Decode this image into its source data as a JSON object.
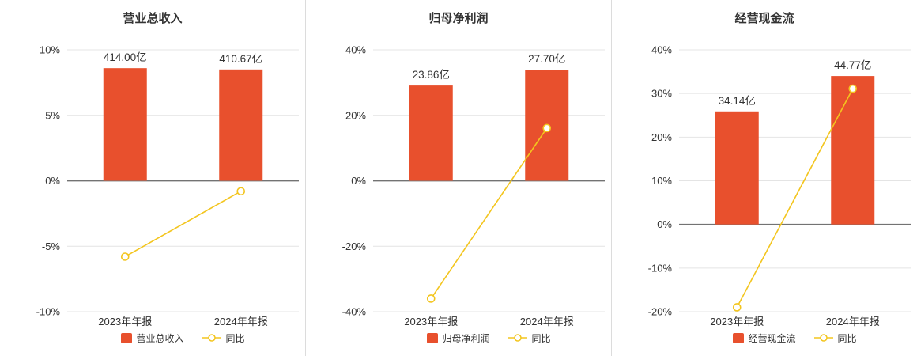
{
  "colors": {
    "bar": "#e8502d",
    "line": "#f3c51e",
    "grid_line": "#e4e4e4",
    "zero_line": "#737373",
    "axis_text": "#333333",
    "label_text": "#333333",
    "divider": "#dcdcdc",
    "background": "#ffffff"
  },
  "chart_data": [
    {
      "type": "bar+line",
      "title": "营业总收入",
      "categories": [
        "2023年年报",
        "2024年年报"
      ],
      "bar_series": {
        "name": "营业总收入",
        "unit": "亿",
        "values": [
          414.0,
          410.67
        ],
        "value_labels": [
          "414.00亿",
          "410.67亿"
        ],
        "bar_top_on_pct_axis": [
          8.6,
          8.5
        ]
      },
      "line_series": {
        "name": "同比",
        "unit": "%",
        "values": [
          -5.8,
          -0.8
        ]
      },
      "y_ticks": [
        10,
        5,
        0,
        -5,
        -10
      ],
      "ylim": [
        -10,
        10
      ],
      "tick_suffix": "%",
      "grid": true,
      "legend_position": "bottom"
    },
    {
      "type": "bar+line",
      "title": "归母净利润",
      "categories": [
        "2023年年报",
        "2024年年报"
      ],
      "bar_series": {
        "name": "归母净利润",
        "unit": "亿",
        "values": [
          23.86,
          27.7
        ],
        "value_labels": [
          "23.86亿",
          "27.70亿"
        ],
        "bar_top_on_pct_axis": [
          29.1,
          33.9
        ]
      },
      "line_series": {
        "name": "同比",
        "unit": "%",
        "values": [
          -36.0,
          16.1
        ]
      },
      "y_ticks": [
        40,
        20,
        0,
        -20,
        -40
      ],
      "ylim": [
        -40,
        40
      ],
      "tick_suffix": "%",
      "grid": true,
      "legend_position": "bottom"
    },
    {
      "type": "bar+line",
      "title": "经营现金流",
      "categories": [
        "2023年年报",
        "2024年年报"
      ],
      "bar_series": {
        "name": "经营现金流",
        "unit": "亿",
        "values": [
          34.14,
          44.77
        ],
        "value_labels": [
          "34.14亿",
          "44.77亿"
        ],
        "bar_top_on_pct_axis": [
          25.9,
          34.0
        ]
      },
      "line_series": {
        "name": "同比",
        "unit": "%",
        "values": [
          -19.0,
          31.1
        ]
      },
      "y_ticks": [
        40,
        30,
        20,
        10,
        0,
        -10,
        -20
      ],
      "ylim": [
        -20,
        40
      ],
      "tick_suffix": "%",
      "grid": true,
      "legend_position": "bottom"
    }
  ]
}
